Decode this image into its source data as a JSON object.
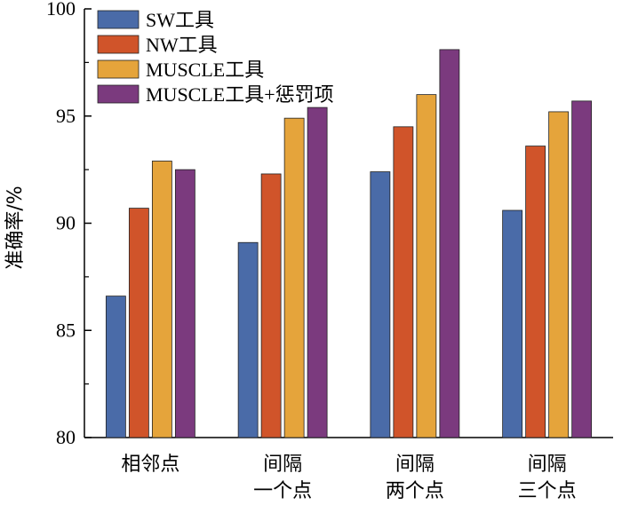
{
  "chart_data": {
    "type": "bar",
    "title": "",
    "xlabel": "",
    "ylabel": "准确率/%",
    "ylim": [
      80,
      100
    ],
    "yticks": [
      80,
      85,
      90,
      95,
      100
    ],
    "grid": false,
    "legend_position": "top-left",
    "categories": [
      [
        "相邻点"
      ],
      [
        "间隔",
        "一个点"
      ],
      [
        "间隔",
        "两个点"
      ],
      [
        "间隔",
        "三个点"
      ]
    ],
    "series": [
      {
        "name": "SW工具",
        "color": "#4a6ba8",
        "values": [
          86.6,
          89.1,
          92.4,
          90.6
        ]
      },
      {
        "name": "NW工具",
        "color": "#d0542a",
        "values": [
          90.7,
          92.3,
          94.5,
          93.6
        ]
      },
      {
        "name": "MUSCLE工具",
        "color": "#e5a43b",
        "values": [
          92.9,
          94.9,
          96.0,
          95.2
        ]
      },
      {
        "name": "MUSCLE工具+惩罚项",
        "color": "#7b3a7e",
        "values": [
          92.5,
          95.4,
          98.1,
          95.7
        ]
      }
    ]
  }
}
